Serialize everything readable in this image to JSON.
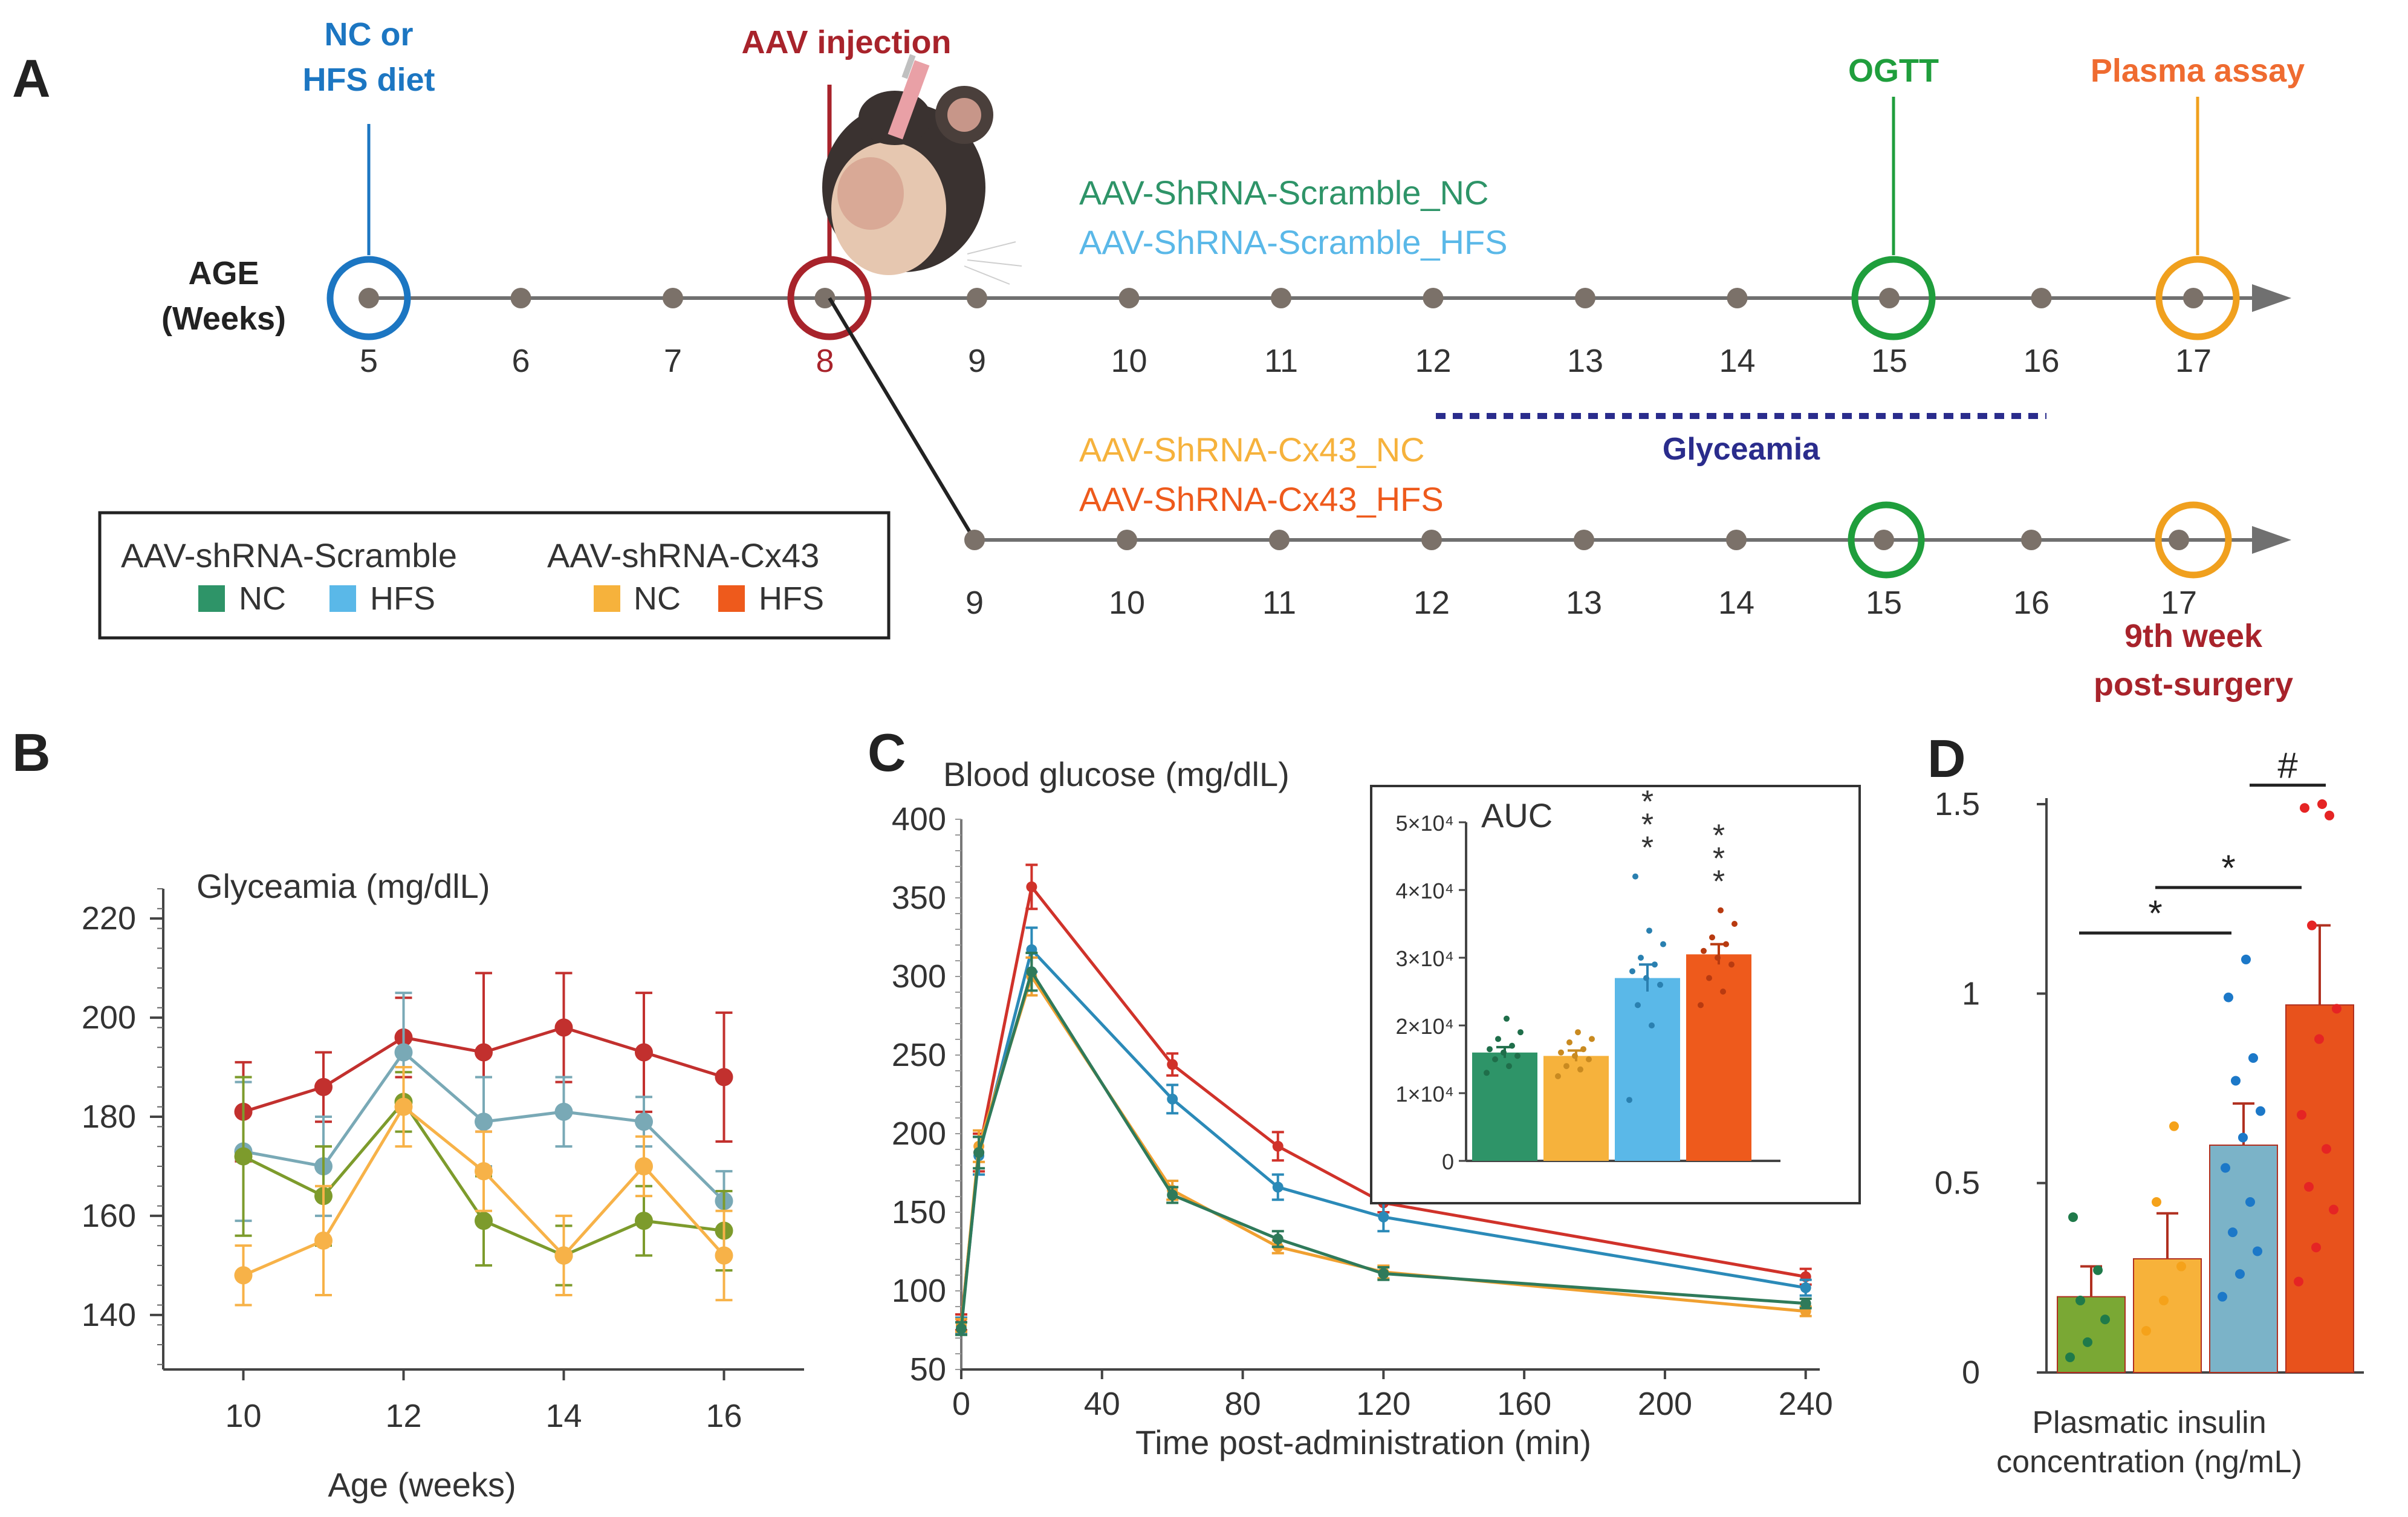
{
  "colors": {
    "scramble_nc": "#2e9468",
    "scramble_hfs": "#5ab8e8",
    "cx43_nc": "#f6b23c",
    "cx43_hfs": "#ee5a1c",
    "nc_hfs_event": "#1c76c2",
    "aav_event": "#a8232b",
    "ogtt_event": "#1f9e3c",
    "plasma_event": "#f0a01e",
    "plasma_text": "#ef6b30",
    "glyceamia_dots": "#2a2c8c",
    "timeline": "#707070",
    "dot": "#7b7169",
    "panelB_red": "#c2302e",
    "panelB_teal": "#79a9b6",
    "panelB_orange": "#f7b248",
    "panelB_olive": "#7d9b2c",
    "panelC_red": "#d0322a",
    "panelC_blue": "#2b8ab8",
    "panelC_orange": "#f0a030",
    "panelC_green": "#2f7a5a",
    "panelD_bars": [
      "#7aa834",
      "#f7b23a",
      "#7bb3c8",
      "#e8521c"
    ],
    "panelD_dots": [
      "#1f7a4a",
      "#f5a21a",
      "#1c78c8",
      "#e52424"
    ]
  },
  "panelA": {
    "letter": "A",
    "age_label_line1": "AGE",
    "age_label_line2": "(Weeks)",
    "events": {
      "nc_hfs_line1": "NC or",
      "nc_hfs_line2": "HFS diet",
      "aav": "AAV injection",
      "ogtt": "OGTT",
      "plasma": "Plasma assay"
    },
    "top_weeks": [
      "5",
      "6",
      "7",
      "8",
      "9",
      "10",
      "11",
      "12",
      "13",
      "14",
      "15",
      "16",
      "17"
    ],
    "bottom_weeks": [
      "9",
      "10",
      "11",
      "12",
      "13",
      "14",
      "15",
      "16",
      "17"
    ],
    "top_group_labels": [
      "AAV-ShRNA-Scramble_NC",
      "AAV-ShRNA-Scramble_HFS"
    ],
    "bottom_group_labels": [
      "AAV-ShRNA-Cx43_NC",
      "AAV-ShRNA-Cx43_HFS"
    ],
    "glyceamia_label": "Glyceamia",
    "post_surgery_line1": "9th week",
    "post_surgery_line2": "post-surgery",
    "legend": {
      "scramble_title": "AAV-shRNA-Scramble",
      "cx43_title": "AAV-shRNA-Cx43",
      "nc": "NC",
      "hfs": "HFS"
    }
  },
  "panelB": {
    "letter": "B",
    "chart_data": {
      "type": "line",
      "title": "Glyceamia (mg/dlL)",
      "xlabel": "Age (weeks)",
      "ylabel": "",
      "x": [
        10,
        11,
        12,
        13,
        14,
        15,
        16
      ],
      "xticks": [
        10,
        12,
        14,
        16
      ],
      "yticks": [
        140,
        160,
        180,
        200,
        220
      ],
      "xlim": [
        9,
        17
      ],
      "ylim": [
        129,
        226
      ],
      "series": [
        {
          "name": "Scramble HFS (red)",
          "color": "#c2302e",
          "values": [
            181,
            186,
            196,
            193,
            198,
            193,
            188
          ],
          "err": [
            10,
            7,
            8,
            16,
            11,
            12,
            13
          ]
        },
        {
          "name": "Cx43 HFS (teal)",
          "color": "#79a9b6",
          "values": [
            173,
            170,
            193,
            179,
            181,
            179,
            163
          ],
          "err": [
            14,
            10,
            12,
            9,
            7,
            5,
            6
          ]
        },
        {
          "name": "Scramble NC (olive)",
          "color": "#7d9b2c",
          "values": [
            172,
            164,
            183,
            159,
            152,
            159,
            157
          ],
          "err": [
            16,
            10,
            6,
            9,
            6,
            7,
            8
          ]
        },
        {
          "name": "Cx43 NC (orange)",
          "color": "#f7b248",
          "values": [
            148,
            155,
            182,
            169,
            152,
            170,
            152
          ],
          "err": [
            6,
            11,
            8,
            8,
            8,
            6,
            9
          ]
        }
      ]
    }
  },
  "panelC": {
    "letter": "C",
    "chart_data": {
      "type": "line",
      "title": "Blood glucose (mg/dlL)",
      "xlabel": "Time post-administration (min)",
      "ylabel": "",
      "x": [
        0,
        5,
        20,
        60,
        90,
        120,
        240
      ],
      "xticks": [
        0,
        40,
        80,
        120,
        160,
        200,
        240
      ],
      "yticks": [
        50,
        100,
        150,
        200,
        250,
        300,
        350,
        400
      ],
      "xlim": [
        0,
        244
      ],
      "ylim": [
        50,
        400
      ],
      "series": [
        {
          "name": "Cx43 HFS",
          "color": "#d0322a",
          "values": [
            80,
            188,
            357,
            244,
            192,
            156,
            109
          ],
          "err": [
            5,
            12,
            14,
            7,
            9,
            6,
            5
          ]
        },
        {
          "name": "Scramble HFS",
          "color": "#2b8ab8",
          "values": [
            78,
            186,
            317,
            222,
            166,
            147,
            102
          ],
          "err": [
            5,
            12,
            14,
            9,
            8,
            9,
            5
          ]
        },
        {
          "name": "Cx43 NC",
          "color": "#f0a030",
          "values": [
            78,
            192,
            300,
            164,
            128,
            112,
            87
          ],
          "err": [
            4,
            10,
            12,
            6,
            4,
            4,
            3
          ]
        },
        {
          "name": "Scramble NC",
          "color": "#2f7a5a",
          "values": [
            76,
            188,
            303,
            161,
            133,
            111,
            92
          ],
          "err": [
            4,
            10,
            12,
            5,
            5,
            4,
            3
          ]
        }
      ],
      "inset": {
        "type": "bar",
        "title": "AUC",
        "yticks": [
          "0",
          "1×10⁴",
          "2×10⁴",
          "3×10⁴",
          "4×10⁴",
          "5×10⁴"
        ],
        "ylim": [
          0,
          50000
        ],
        "categories": [
          "Scramble NC",
          "Cx43 NC",
          "Scramble HFS",
          "Cx43 HFS"
        ],
        "values": [
          16000,
          15500,
          27000,
          30500
        ],
        "err": [
          800,
          800,
          2000,
          1500
        ],
        "colors": [
          "#2e9468",
          "#f6b23c",
          "#5ab8e8",
          "#ee5a1c"
        ],
        "significance": [
          "",
          "",
          "***",
          "***"
        ],
        "points": [
          [
            13000,
            14000,
            15000,
            15500,
            16000,
            16500,
            17000,
            18000,
            19000,
            21000
          ],
          [
            12500,
            13500,
            14000,
            15000,
            15500,
            16000,
            16500,
            17500,
            18000,
            19000
          ],
          [
            9000,
            20000,
            23000,
            26000,
            27000,
            28000,
            29000,
            30000,
            32000,
            34000,
            42000
          ],
          [
            23000,
            25000,
            27000,
            29000,
            30000,
            31000,
            32000,
            33000,
            35000,
            37000
          ]
        ]
      }
    }
  },
  "panelD": {
    "letter": "D",
    "chart_data": {
      "type": "bar",
      "title": "",
      "xlabel_line1": "Plasmatic insulin",
      "xlabel_line2": "concentration (ng/mL)",
      "ylabel": "",
      "yticks": [
        "0",
        "0.5",
        "1",
        "1.5"
      ],
      "ytick_values": [
        0,
        0.5,
        1,
        1.5
      ],
      "ylim": [
        0,
        1.5
      ],
      "categories": [
        "Scramble NC",
        "Cx43 NC",
        "Scramble HFS",
        "Cx43 HFS"
      ],
      "values": [
        0.2,
        0.3,
        0.6,
        0.97
      ],
      "err": [
        0.08,
        0.12,
        0.11,
        0.21
      ],
      "points": [
        [
          0.04,
          0.08,
          0.14,
          0.19,
          0.27,
          0.41
        ],
        [
          0.11,
          0.19,
          0.28,
          0.45,
          0.65
        ],
        [
          0.2,
          0.26,
          0.32,
          0.37,
          0.45,
          0.54,
          0.62,
          0.69,
          0.77,
          0.83,
          0.99,
          1.09
        ],
        [
          0.24,
          0.33,
          0.43,
          0.49,
          0.59,
          0.68,
          0.88,
          0.96,
          1.18,
          1.47,
          1.49,
          1.5
        ]
      ],
      "significance": [
        {
          "from": 0,
          "to": 2,
          "label": "*",
          "y": 1.16
        },
        {
          "from": 1,
          "to": 3,
          "label": "*",
          "y": 1.28
        },
        {
          "from": 2,
          "to": 3,
          "label": "#",
          "y": 1.55
        }
      ]
    }
  }
}
